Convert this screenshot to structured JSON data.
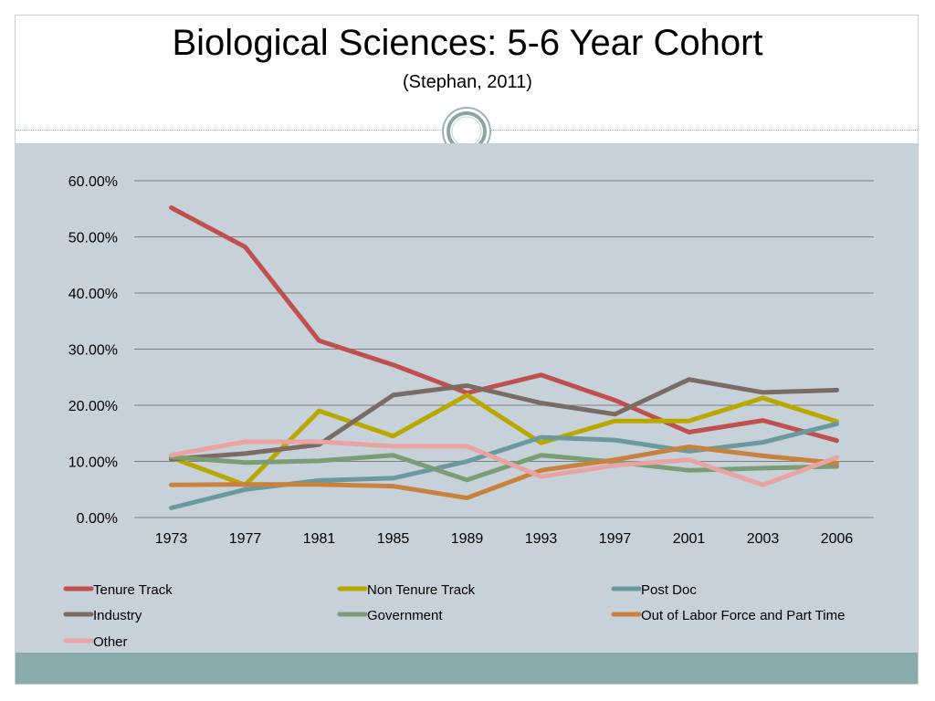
{
  "slide": {
    "title": "Biological Sciences: 5-6 Year Cohort",
    "subtitle": "(Stephan, 2011)"
  },
  "colors": {
    "chart_background": "#c7d1d9",
    "footer_band": "#8aabab",
    "gridline": "#7f7f7f"
  },
  "chart_data": {
    "type": "line",
    "title": "",
    "xlabel": "",
    "ylabel": "",
    "categories": [
      "1973",
      "1977",
      "1981",
      "1985",
      "1989",
      "1993",
      "1997",
      "2001",
      "2003",
      "2006"
    ],
    "ylim": [
      0,
      0.6
    ],
    "yticks": [
      0,
      0.1,
      0.2,
      0.3,
      0.4,
      0.5,
      0.6
    ],
    "ytick_labels": [
      "0.00%",
      "10.00%",
      "20.00%",
      "30.00%",
      "40.00%",
      "50.00%",
      "60.00%"
    ],
    "grid": true,
    "legend_position": "bottom",
    "series": [
      {
        "name": "Tenure Track",
        "color": "#c0504d",
        "values": [
          0.552,
          0.482,
          0.315,
          0.272,
          0.222,
          0.254,
          0.209,
          0.152,
          0.173,
          0.137
        ]
      },
      {
        "name": "Non Tenure Track",
        "color": "#b8a800",
        "values": [
          0.107,
          0.058,
          0.19,
          0.145,
          0.218,
          0.133,
          0.172,
          0.172,
          0.213,
          0.171
        ]
      },
      {
        "name": "Post Doc",
        "color": "#6a9a9d",
        "values": [
          0.017,
          0.05,
          0.066,
          0.07,
          0.1,
          0.143,
          0.138,
          0.118,
          0.134,
          0.167
        ]
      },
      {
        "name": "Industry",
        "color": "#7c6b63",
        "values": [
          0.104,
          0.114,
          0.13,
          0.218,
          0.235,
          0.204,
          0.184,
          0.246,
          0.223,
          0.227
        ]
      },
      {
        "name": "Government",
        "color": "#7a9d76",
        "values": [
          0.108,
          0.098,
          0.101,
          0.111,
          0.067,
          0.111,
          0.099,
          0.084,
          0.088,
          0.091
        ]
      },
      {
        "name": "Out of Labor Force and Part Time",
        "color": "#c8823e",
        "values": [
          0.058,
          0.059,
          0.059,
          0.056,
          0.035,
          0.084,
          0.103,
          0.126,
          0.11,
          0.097
        ]
      },
      {
        "name": "Other",
        "color": "#e9a3a0",
        "values": [
          0.111,
          0.135,
          0.135,
          0.127,
          0.127,
          0.073,
          0.093,
          0.103,
          0.058,
          0.107
        ]
      }
    ]
  }
}
